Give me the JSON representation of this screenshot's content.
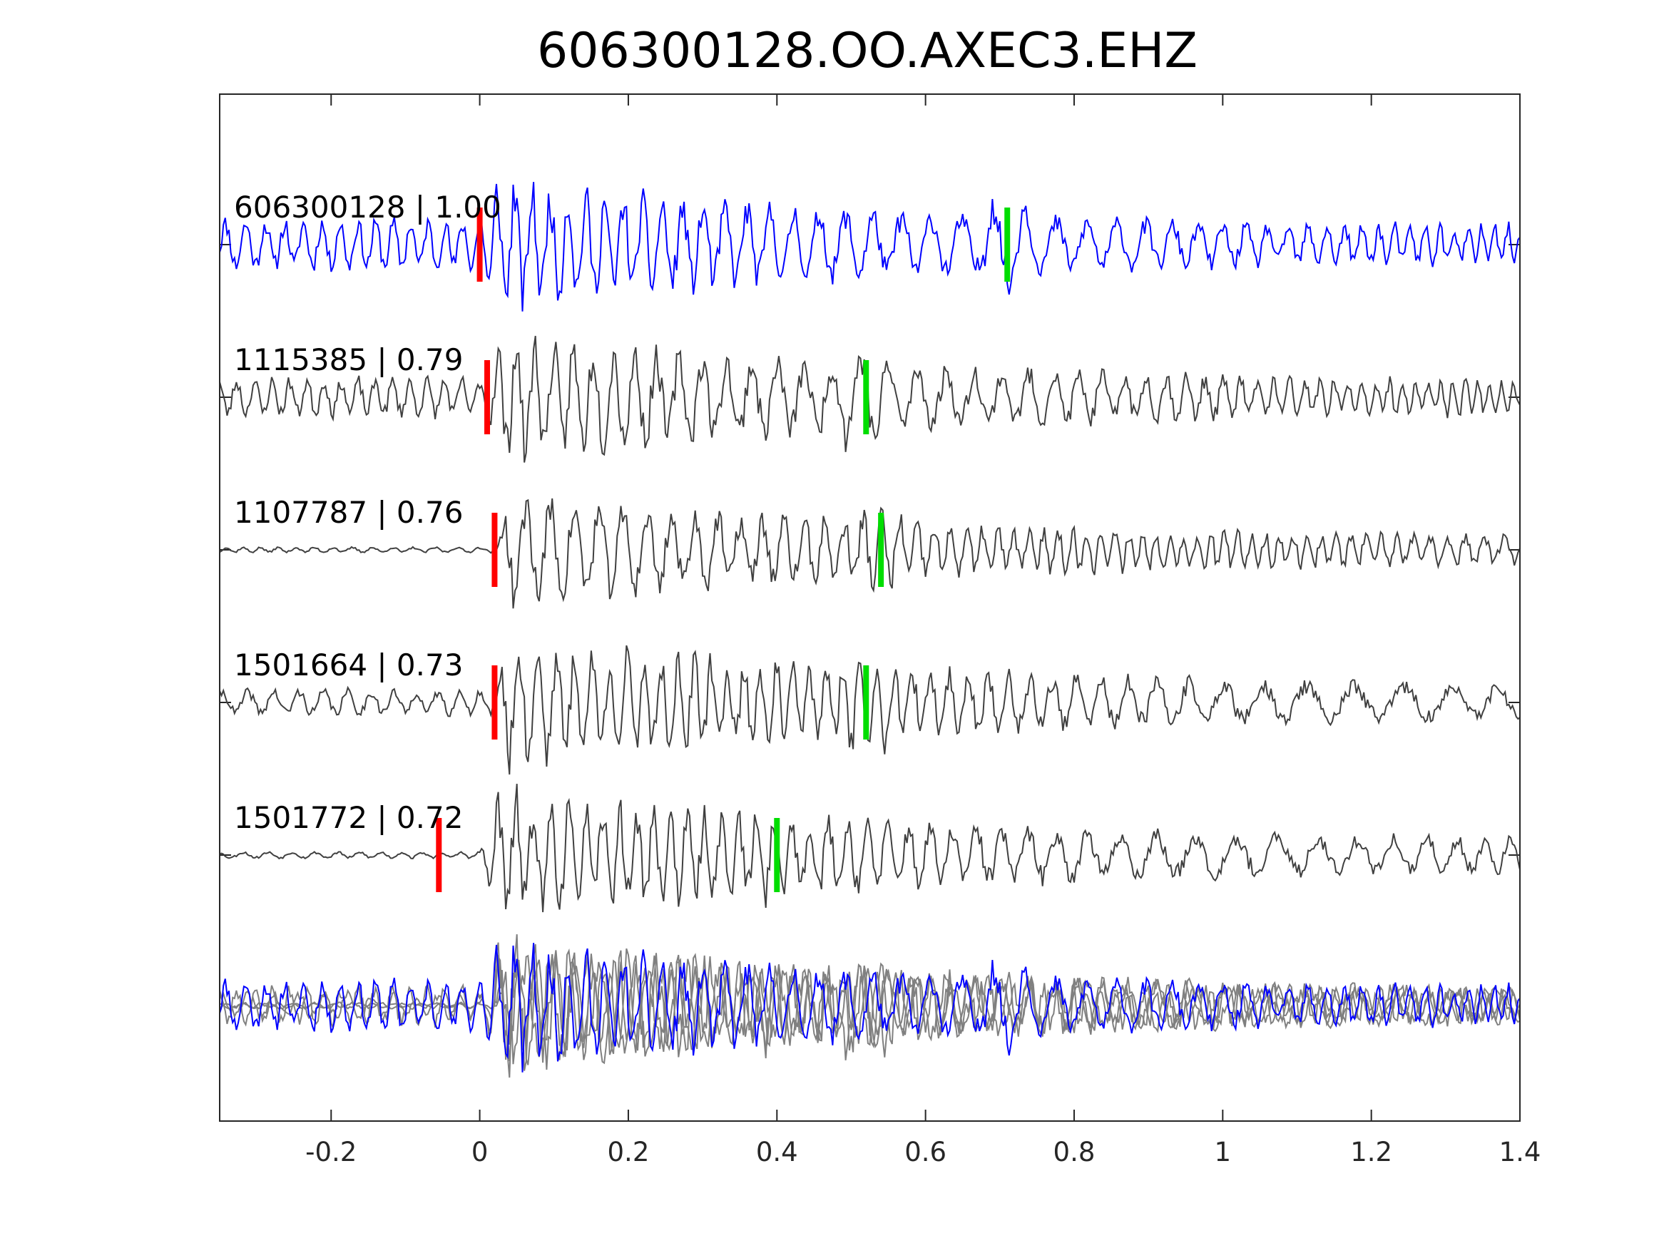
{
  "chart_data": {
    "type": "line",
    "title": "606300128.OO.AXEC3.EHZ",
    "xlabel": "",
    "ylabel": "",
    "xlim": [
      -0.35,
      1.4
    ],
    "xticks": [
      "-0.2",
      "0",
      "0.2",
      "0.4",
      "0.6",
      "0.8",
      "1",
      "1.2",
      "1.4"
    ],
    "xtick_values": [
      -0.2,
      0,
      0.2,
      0.4,
      0.6,
      0.8,
      1,
      1.2,
      1.4
    ],
    "grid": false,
    "legend": "none",
    "colors": {
      "template": "#0000ff",
      "match": "#404040",
      "overlay_match": "#808080",
      "p_pick": "#ff0000",
      "s_pick": "#00dd00",
      "axes": "#262626"
    },
    "traces": [
      {
        "label": "606300128 | 1.00",
        "id": "606300128",
        "correlation": 1.0,
        "color": "#0000ff",
        "p_pick": 0.0,
        "s_pick": 0.71,
        "onset": 0.0,
        "noise": 0.4,
        "amplitude": 1.0,
        "seed": 11
      },
      {
        "label": "1115385 | 0.79",
        "id": "1115385",
        "correlation": 0.79,
        "color": "#404040",
        "p_pick": 0.01,
        "s_pick": 0.52,
        "onset": 0.01,
        "noise": 0.3,
        "amplitude": 1.0,
        "seed": 23
      },
      {
        "label": "1107787 | 0.76",
        "id": "1107787",
        "correlation": 0.76,
        "color": "#404040",
        "p_pick": 0.02,
        "s_pick": 0.54,
        "onset": 0.02,
        "noise": 0.05,
        "amplitude": 0.85,
        "seed": 37
      },
      {
        "label": "1501664 | 0.73",
        "id": "1501664",
        "correlation": 0.73,
        "color": "#404040",
        "p_pick": 0.02,
        "s_pick": 0.52,
        "onset": 0.02,
        "noise": 0.2,
        "amplitude": 1.0,
        "seed": 41
      },
      {
        "label": "1501772 | 0.72",
        "id": "1501772",
        "correlation": 0.72,
        "color": "#404040",
        "p_pick": -0.055,
        "s_pick": 0.4,
        "onset": 0.0,
        "noise": 0.05,
        "amplitude": 1.0,
        "seed": 53
      }
    ],
    "overlay": {
      "description_visible": false
    }
  }
}
